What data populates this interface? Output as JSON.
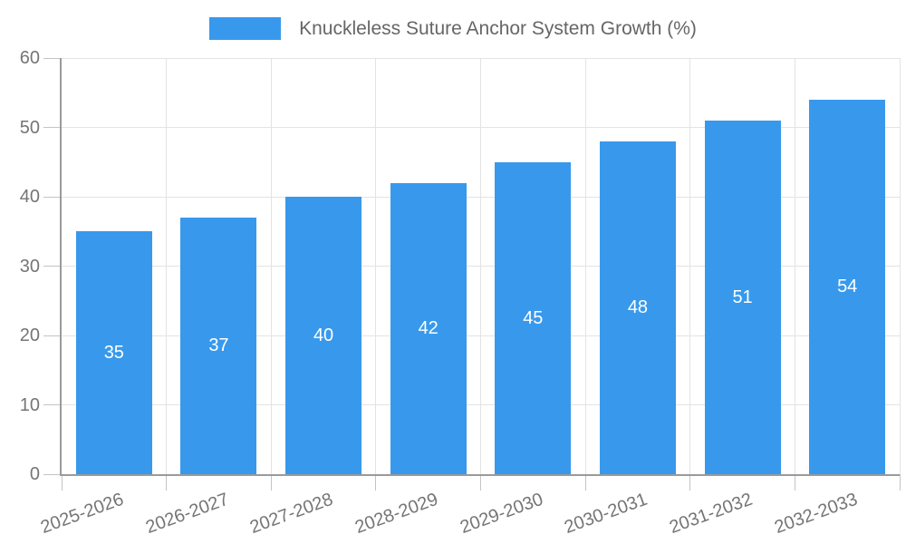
{
  "chart_data": {
    "type": "bar",
    "title": "",
    "categories": [
      "2025-2026",
      "2026-2027",
      "2027-2028",
      "2028-2029",
      "2029-2030",
      "2030-2031",
      "2031-2032",
      "2032-2033"
    ],
    "series": [
      {
        "name": "Knuckleless Suture Anchor System Growth (%)",
        "values": [
          35,
          37,
          40,
          42,
          45,
          48,
          51,
          54
        ]
      }
    ],
    "xlabel": "",
    "ylabel": "",
    "ylim": [
      0,
      60
    ],
    "yticks": [
      0,
      10,
      20,
      30,
      40,
      50,
      60
    ],
    "grid": true,
    "legend_position": "top",
    "x_label_rotation_deg": -20,
    "colors": {
      "bar": "#3899EC",
      "bar_value_label": "#FFFFFF",
      "grid": "#E3E3E3",
      "axis": "#9A9A9A",
      "tick": "#C4C4C4",
      "axis_text": "#757575",
      "legend_text": "#666666",
      "background": "#FFFFFF"
    }
  }
}
